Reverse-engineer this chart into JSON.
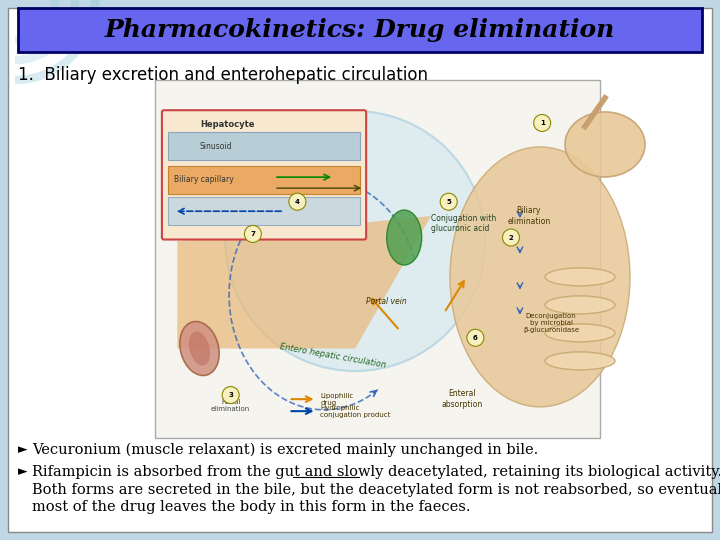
{
  "title": "Pharmacokinetics: Drug elimination",
  "title_bg_color": "#6666EE",
  "title_text_color": "#000000",
  "title_border_color": "#000066",
  "bg_color": "#C8DDE8",
  "white_area_color": "#FFFFFF",
  "subtitle": "1.  Biliary excretion and enterohepatic circulation",
  "subtitle_fontsize": 12,
  "title_fontsize": 18,
  "bullet1": "Vecuronium (muscle relaxant) is excreted mainly unchanged in bile.",
  "bullet2_pre": "Rifampicin is absorbed from the gut and slowly ",
  "bullet2_underline": "deacetylated",
  "bullet2_post": ", retaining its biological activity.",
  "bullet2_line2": "Both forms are secreted in the bile, but the deacetylated form is not reabsorbed, so eventually",
  "bullet2_line3": "most of the drug leaves the body in this form in the faeces.",
  "text_fontsize": 10.5,
  "bullet_fontsize": 12
}
